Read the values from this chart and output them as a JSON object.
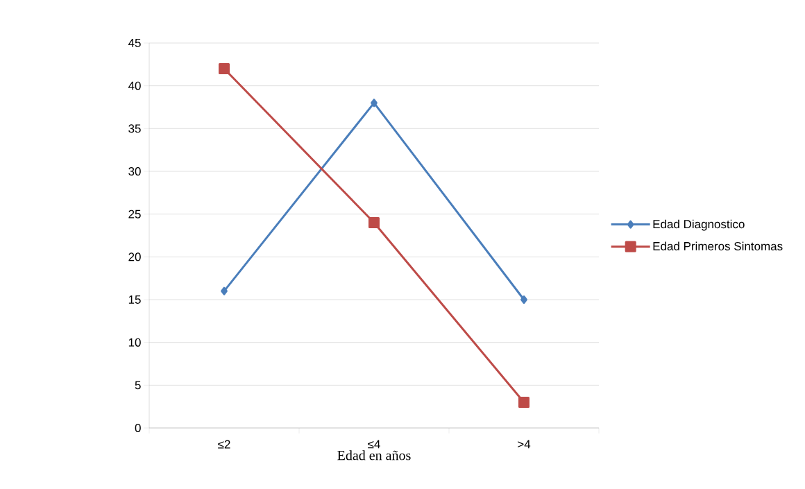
{
  "chart_data": {
    "type": "line",
    "xlabel": "Edad en años",
    "categories": [
      "≤2",
      "≤4",
      ">4"
    ],
    "series": [
      {
        "name": "Edad Diagnostico",
        "color": "#4a7ebb",
        "marker": "diamond",
        "values": [
          16,
          38,
          15
        ]
      },
      {
        "name": "Edad Primeros Sintomas",
        "color": "#be4b48",
        "marker": "square",
        "values": [
          42,
          24,
          3
        ]
      }
    ],
    "ylim": [
      0,
      45
    ],
    "yticks": [
      0,
      5,
      10,
      15,
      20,
      25,
      30,
      35,
      40,
      45
    ],
    "grid": "y",
    "legend": "right",
    "line_style": "solid"
  }
}
